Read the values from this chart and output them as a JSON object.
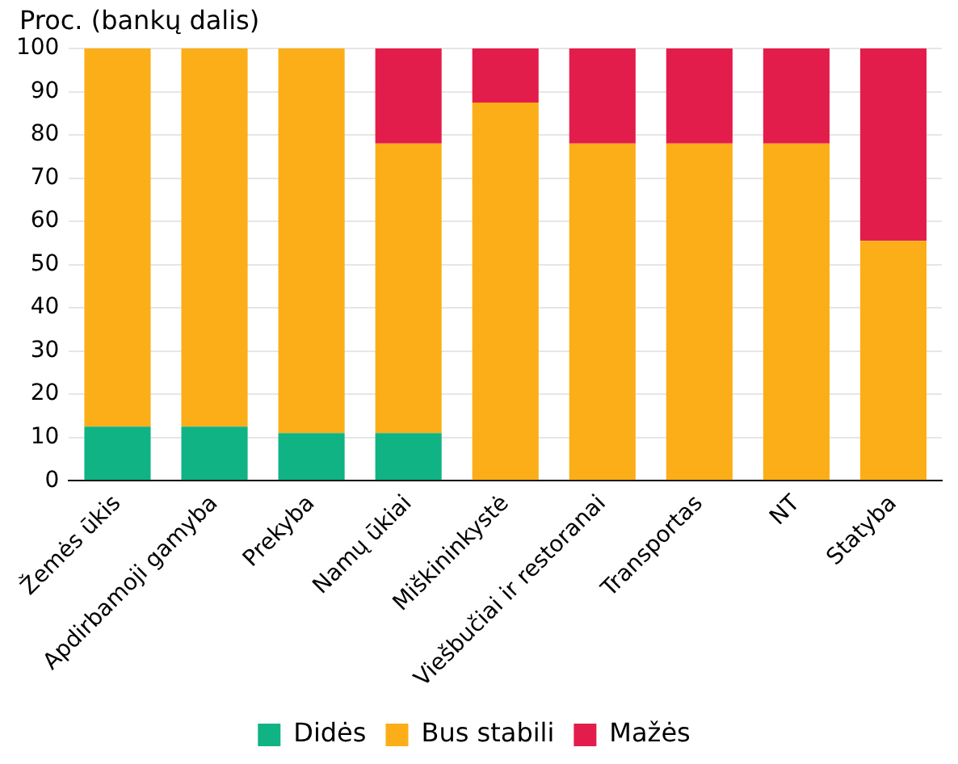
{
  "chart_data": {
    "type": "bar",
    "stacked": true,
    "ylabel": "Proc. (bankų dalis)",
    "categories": [
      "Žemės ūkis",
      "Apdirbamoji gamyba",
      "Prekyba",
      "Namų ūkiai",
      "Miškininkystė",
      "Viešbučiai ir restoranai",
      "Transportas",
      "NT",
      "Statyba"
    ],
    "series": [
      {
        "name": "Didės",
        "color": "#10b384",
        "values": [
          12.5,
          12.5,
          11,
          11,
          0,
          0,
          0,
          0,
          0
        ]
      },
      {
        "name": "Bus stabili",
        "color": "#fbae17",
        "values": [
          87.5,
          87.5,
          89,
          67,
          87.5,
          78,
          78,
          78,
          55.5
        ]
      },
      {
        "name": "Mažės",
        "color": "#e31d4b",
        "values": [
          0,
          0,
          0,
          22,
          12.5,
          22,
          22,
          22,
          44.5
        ]
      }
    ],
    "ylim": [
      0,
      100
    ],
    "yticks": [
      0,
      10,
      20,
      30,
      40,
      50,
      60,
      70,
      80,
      90,
      100
    ],
    "grid": "y",
    "legend": "bottom"
  }
}
